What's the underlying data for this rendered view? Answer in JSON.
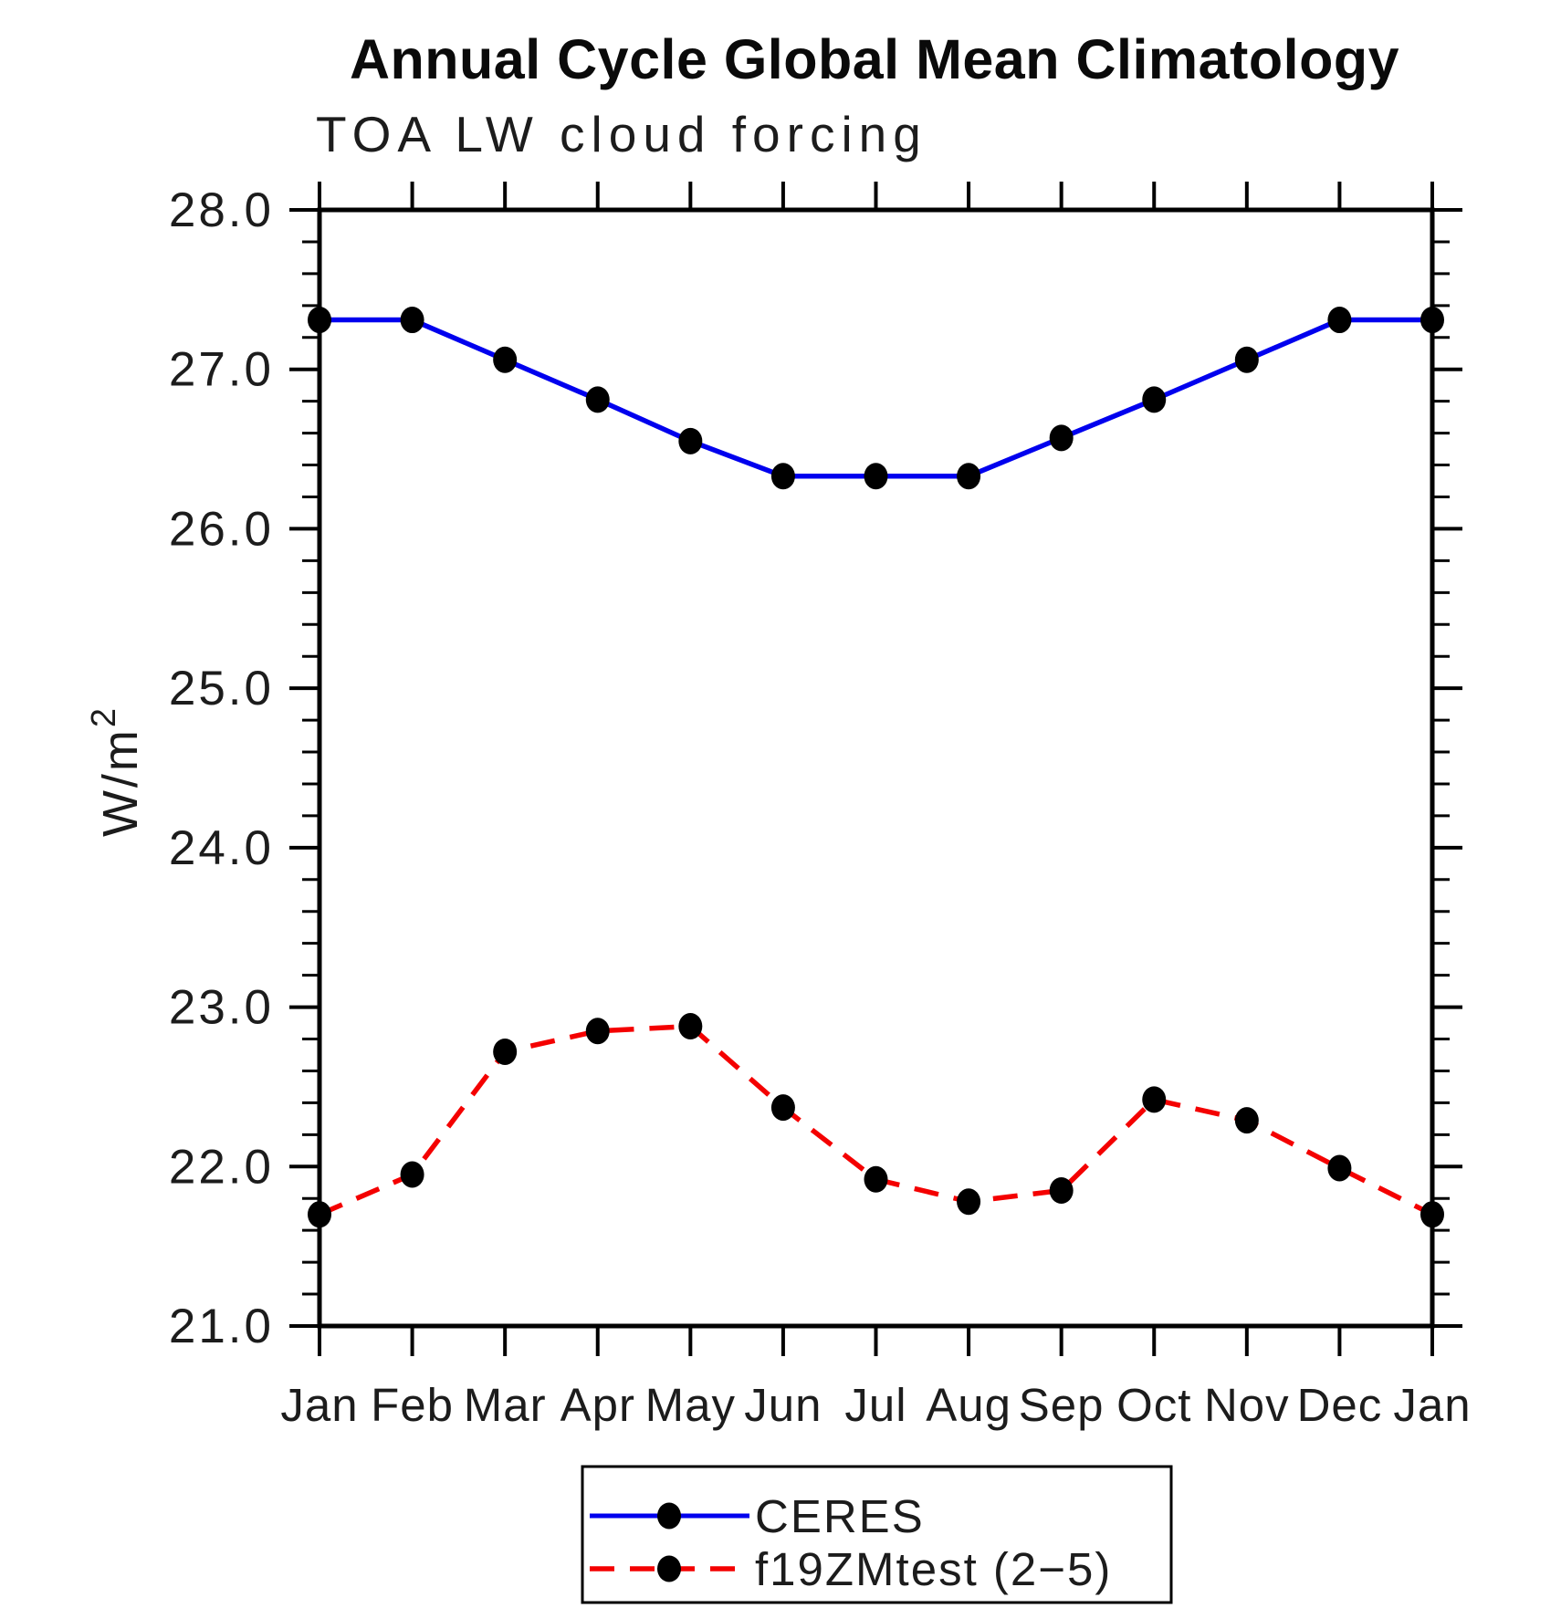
{
  "title": "Annual Cycle Global Mean Climatology",
  "subtitle": "TOA LW cloud forcing",
  "chart_data": {
    "type": "line",
    "x_categories": [
      "Jan",
      "Feb",
      "Mar",
      "Apr",
      "May",
      "Jun",
      "Jul",
      "Aug",
      "Sep",
      "Oct",
      "Nov",
      "Dec",
      "Jan"
    ],
    "series": [
      {
        "name": "CERES",
        "id": "ceres",
        "color": "#0000ee",
        "line_style": "solid",
        "marker": "filled-black-circle",
        "values": [
          27.31,
          27.31,
          27.06,
          26.81,
          26.55,
          26.33,
          26.33,
          26.33,
          26.57,
          26.81,
          27.06,
          27.31,
          27.31
        ]
      },
      {
        "name": "f19ZMtest (2−5)",
        "id": "f19zmtest",
        "color": "#f40000",
        "line_style": "dashed",
        "marker": "filled-black-circle",
        "values": [
          21.7,
          21.95,
          22.72,
          22.85,
          22.88,
          22.37,
          21.92,
          21.78,
          21.85,
          22.42,
          22.29,
          21.99,
          21.7
        ]
      }
    ],
    "ylabel": "W/m²",
    "ylabel_base": "W/m",
    "ylabel_sup": "2",
    "ylim": [
      21.0,
      28.0
    ],
    "ytick_step": 1.0,
    "ytick_minor_step": 0.2,
    "ytick_labels": [
      "28.0",
      "27.0",
      "26.0",
      "25.0",
      "24.0",
      "23.0",
      "22.0",
      "21.0"
    ],
    "grid": false,
    "legend_position": "bottom-center",
    "marker_color": "#000000",
    "axis_color": "#000000"
  }
}
